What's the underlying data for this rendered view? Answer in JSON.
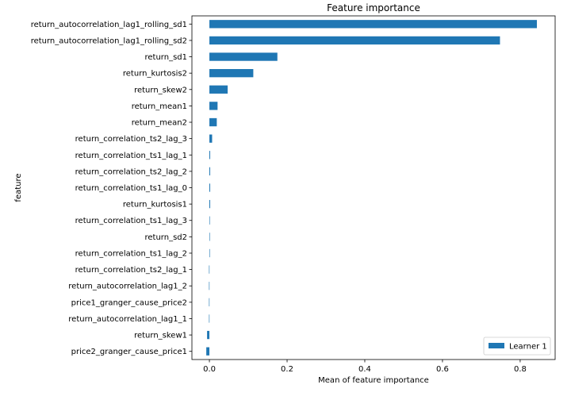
{
  "chart_data": {
    "type": "bar",
    "orientation": "horizontal",
    "title": "Feature importance",
    "xlabel": "Mean of feature importance",
    "ylabel": "feature",
    "xlim": [
      -0.045,
      0.89
    ],
    "xticks": [
      0.0,
      0.2,
      0.4,
      0.6,
      0.8
    ],
    "xtick_labels": [
      "0.0",
      "0.2",
      "0.4",
      "0.6",
      "0.8"
    ],
    "grid": false,
    "legend_position": "lower-right",
    "series_color": "#1f77b4",
    "categories": [
      "return_autocorrelation_lag1_rolling_sd1",
      "return_autocorrelation_lag1_rolling_sd2",
      "return_sd1",
      "return_kurtosis2",
      "return_skew2",
      "return_mean1",
      "return_mean2",
      "return_correlation_ts2_lag_3",
      "return_correlation_ts1_lag_1",
      "return_correlation_ts2_lag_2",
      "return_correlation_ts1_lag_0",
      "return_kurtosis1",
      "return_correlation_ts1_lag_3",
      "return_sd2",
      "return_correlation_ts1_lag_2",
      "return_correlation_ts2_lag_1",
      "return_autocorrelation_lag1_2",
      "price1_granger_cause_price2",
      "return_autocorrelation_lag1_1",
      "return_skew1",
      "price2_granger_cause_price1"
    ],
    "series": [
      {
        "name": "Learner 1",
        "values": [
          0.843,
          0.748,
          0.175,
          0.113,
          0.047,
          0.021,
          0.019,
          0.007,
          0.002,
          0.002,
          0.002,
          0.002,
          0.0,
          0.0,
          0.0,
          -0.001,
          -0.001,
          -0.001,
          -0.001,
          -0.006,
          -0.008
        ]
      }
    ]
  }
}
